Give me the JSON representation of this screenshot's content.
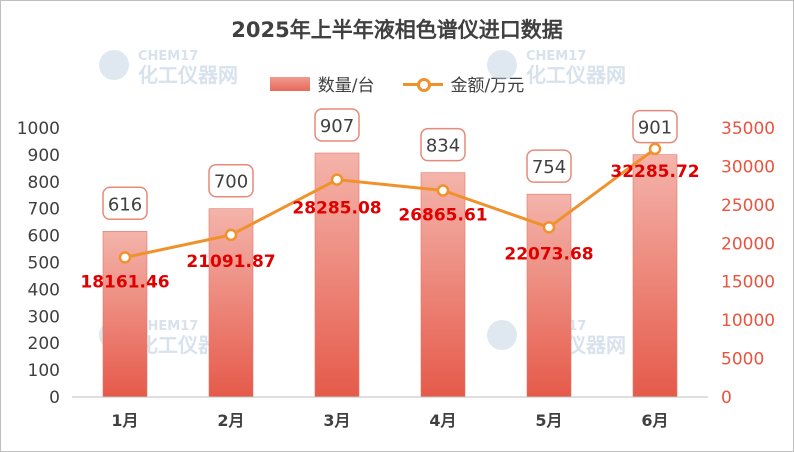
{
  "chart_data": {
    "type": "bar",
    "title": "2025年上半年液相色谱仪进口数据",
    "categories": [
      "1月",
      "2月",
      "3月",
      "4月",
      "5月",
      "6月"
    ],
    "series": [
      {
        "name": "数量/台",
        "type": "bar",
        "axis": "left",
        "values": [
          616,
          700,
          907,
          834,
          754,
          901
        ]
      },
      {
        "name": "金额/万元",
        "type": "line",
        "axis": "right",
        "values": [
          18161.46,
          21091.87,
          28285.08,
          26865.61,
          22073.68,
          32285.72
        ]
      }
    ],
    "y_left": {
      "range": [
        0,
        1000
      ],
      "ticks": [
        0,
        100,
        200,
        300,
        400,
        500,
        600,
        700,
        800,
        900,
        1000
      ]
    },
    "y_right": {
      "range": [
        0,
        35000
      ],
      "ticks": [
        0,
        5000,
        10000,
        15000,
        20000,
        25000,
        30000,
        35000
      ]
    },
    "grid": false,
    "legend": "top-center",
    "colors": {
      "bar_top": "#f4b4ab",
      "bar_bottom": "#e55a4a",
      "line": "#f0922b",
      "right_axis_text": "#e8553f",
      "line_label": "#e00000",
      "text": "#404040"
    }
  },
  "watermark": {
    "brand": "CHEM17",
    "name": "化工仪器网"
  }
}
